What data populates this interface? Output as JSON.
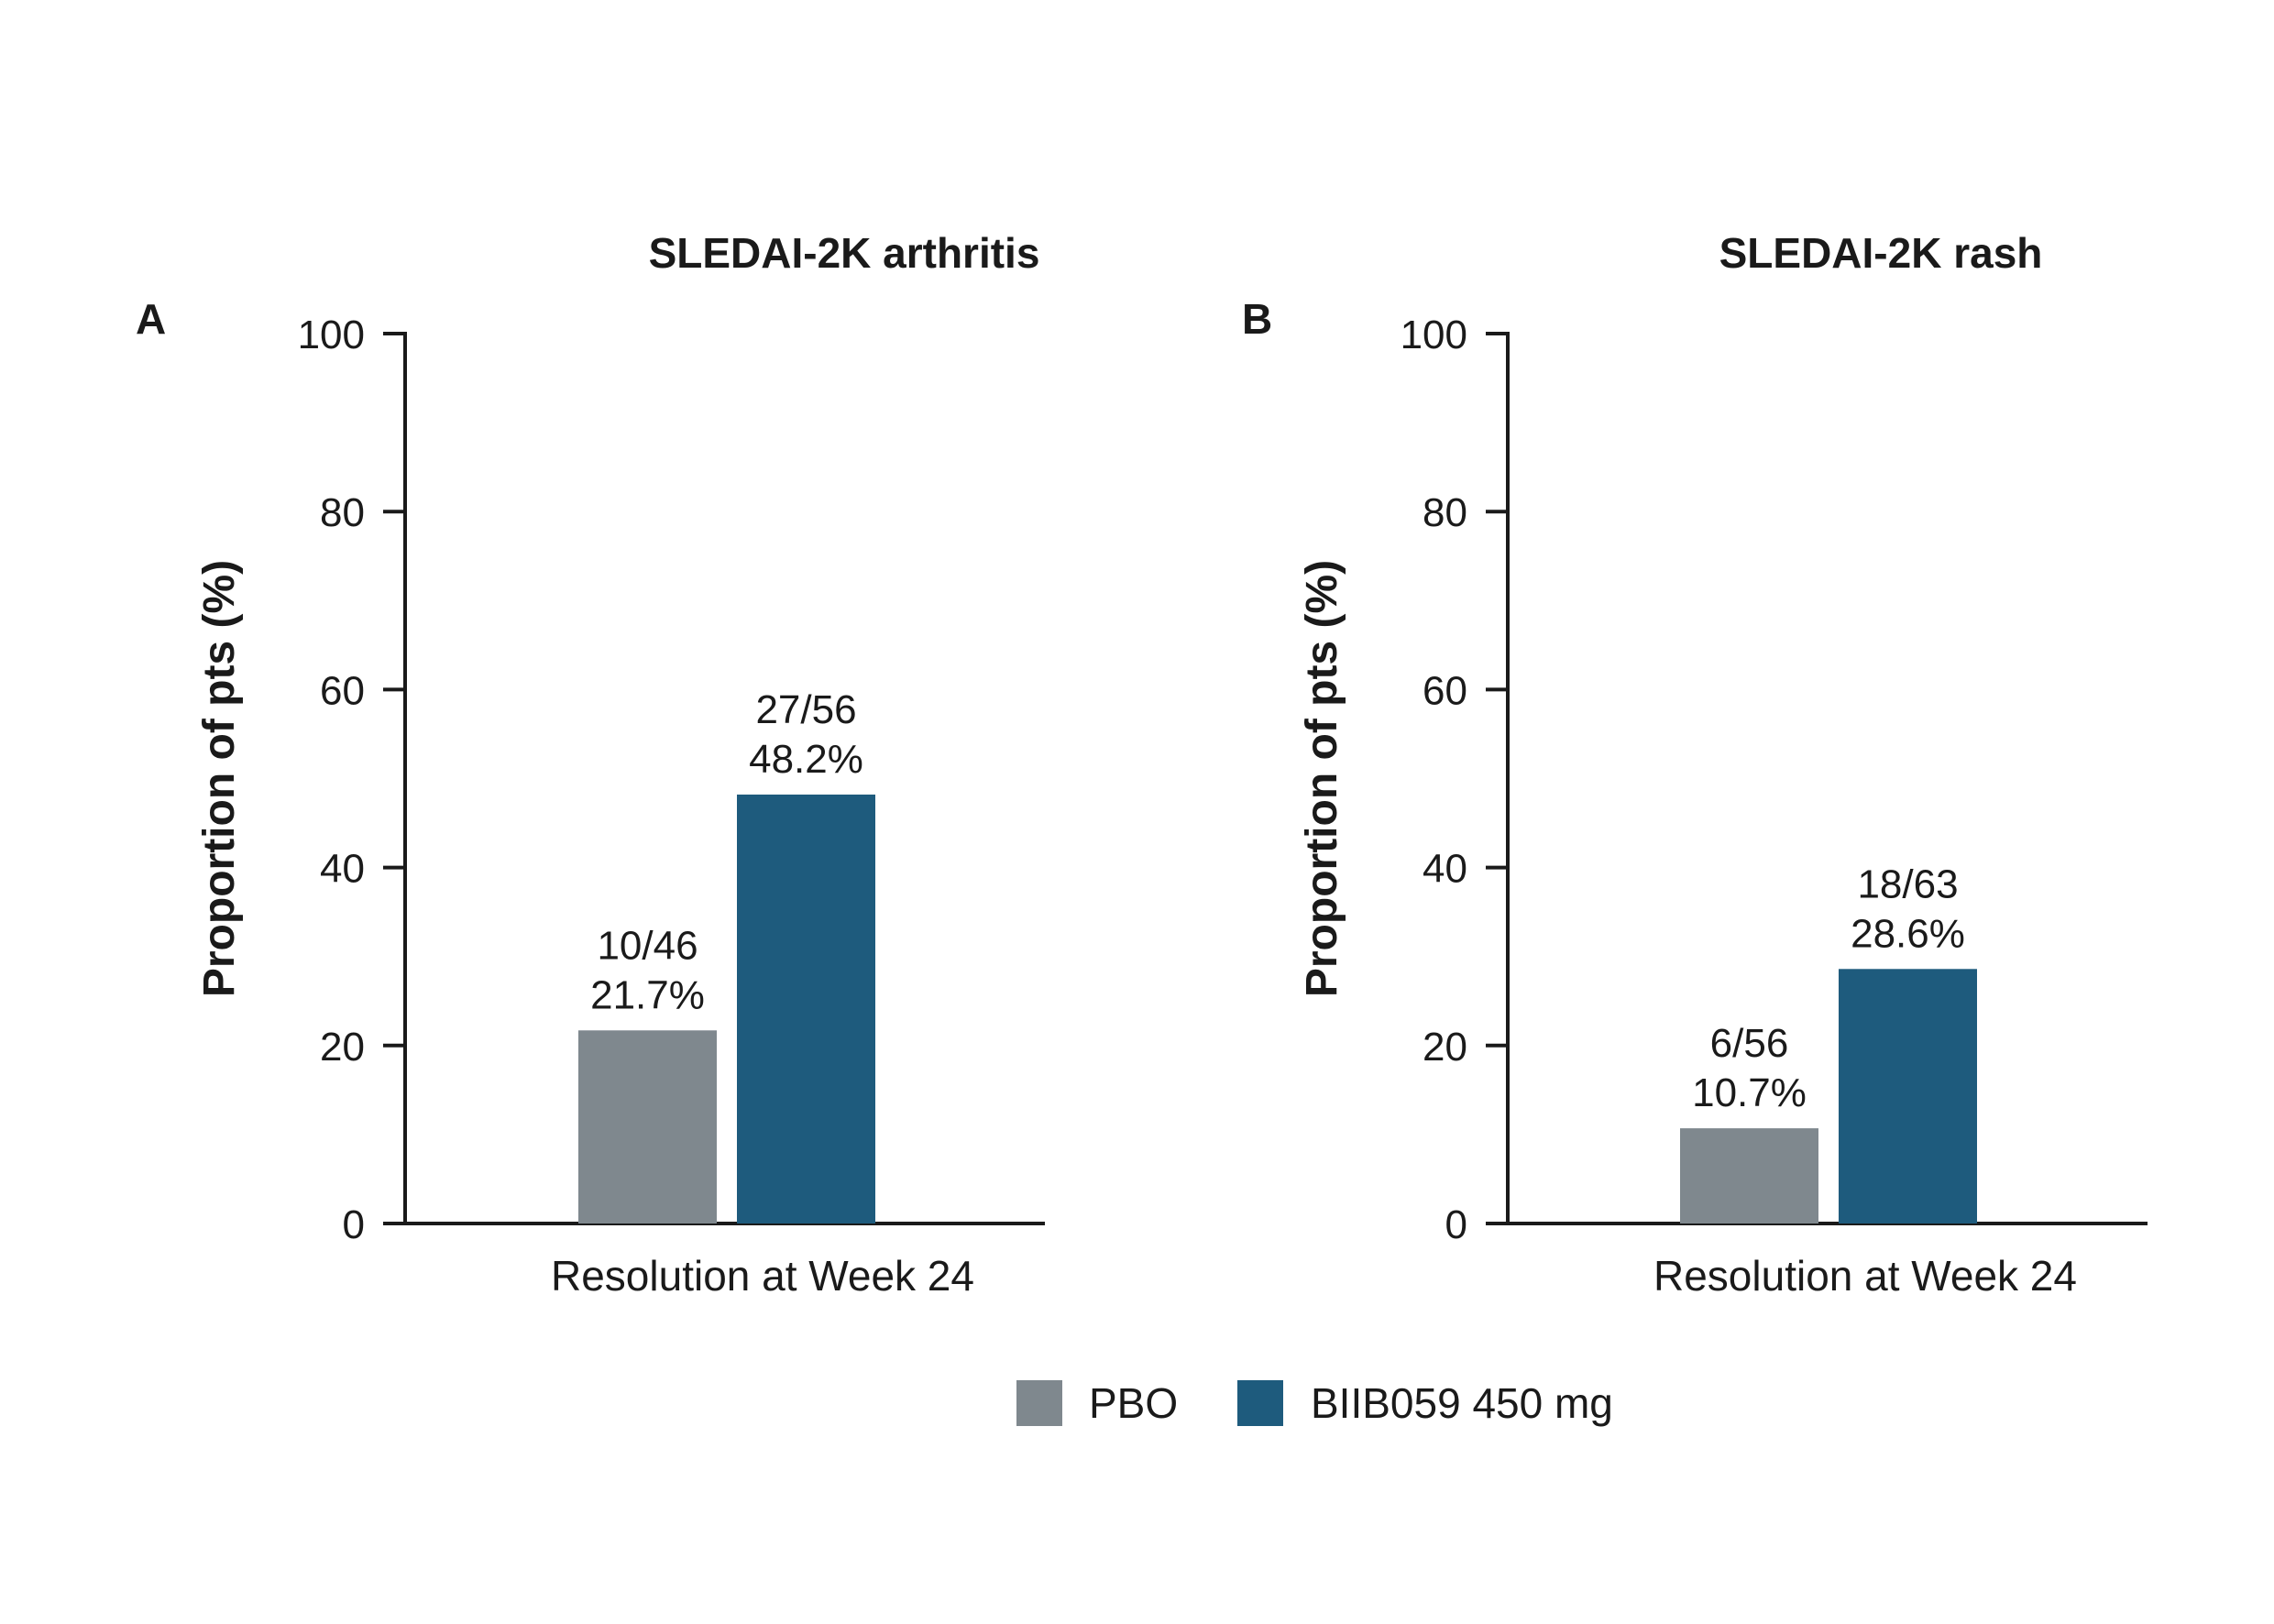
{
  "chart_data": [
    {
      "type": "bar",
      "panel": "A",
      "title": "SLEDAI-2K arthritis",
      "xlabel": "Resolution at Week 24",
      "ylabel": "Proportion of pts (%)",
      "ylim": [
        0,
        100
      ],
      "yticks": [
        0,
        20,
        40,
        60,
        80,
        100
      ],
      "categories": [
        "Resolution at Week 24"
      ],
      "series": [
        {
          "name": "PBO",
          "values": [
            21.7
          ],
          "count_label": "10/46",
          "value_label": "21.7%"
        },
        {
          "name": "BIIB059 450 mg",
          "values": [
            48.2
          ],
          "count_label": "27/56",
          "value_label": "48.2%"
        }
      ]
    },
    {
      "type": "bar",
      "panel": "B",
      "title": "SLEDAI-2K rash",
      "xlabel": "Resolution at Week 24",
      "ylabel": "Proportion of pts (%)",
      "ylim": [
        0,
        100
      ],
      "yticks": [
        0,
        20,
        40,
        60,
        80,
        100
      ],
      "categories": [
        "Resolution at Week 24"
      ],
      "series": [
        {
          "name": "PBO",
          "values": [
            10.7
          ],
          "count_label": "6/56",
          "value_label": "10.7%"
        },
        {
          "name": "BIIB059 450 mg",
          "values": [
            28.6
          ],
          "count_label": "18/63",
          "value_label": "28.6%"
        }
      ]
    }
  ],
  "legend": {
    "placement": "bottom-center",
    "items": [
      {
        "label": "PBO",
        "color": "#7f888e"
      },
      {
        "label": "BIIB059 450 mg",
        "color": "#1e5b7d"
      }
    ]
  },
  "colors": {
    "PBO": "#7f888e",
    "BIIB059 450 mg": "#1e5b7d",
    "axis": "#1a1a1a"
  },
  "grid": false
}
